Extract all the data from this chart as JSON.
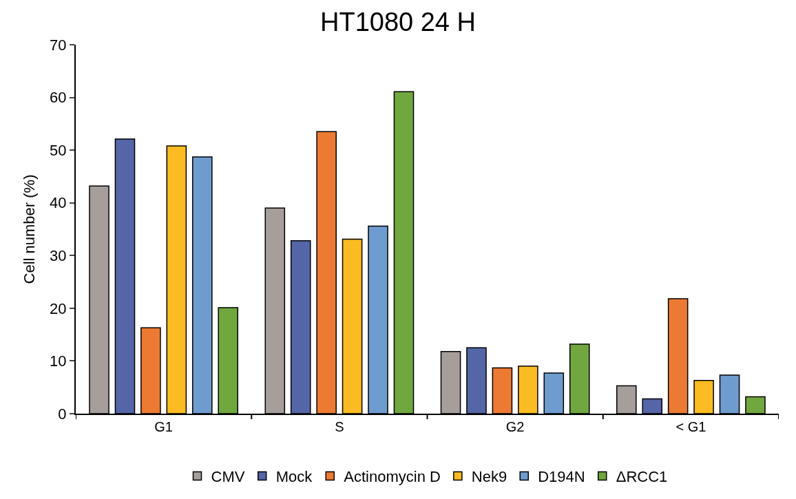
{
  "chart_data": {
    "type": "bar",
    "title": "HT1080 24 H",
    "ylabel": "Cell number (%)",
    "categories": [
      "G1",
      "S",
      "G2",
      "< G1"
    ],
    "series": [
      {
        "name": "CMV",
        "color": "#a59e9a",
        "values": [
          43.2,
          39.0,
          11.8,
          5.3
        ]
      },
      {
        "name": "Mock",
        "color": "#5466a8",
        "values": [
          52.1,
          32.8,
          12.5,
          2.8
        ]
      },
      {
        "name": "Actinomycin D",
        "color": "#ec7a32",
        "values": [
          16.3,
          53.5,
          8.7,
          21.8
        ]
      },
      {
        "name": "Nek9",
        "color": "#fbbb22",
        "values": [
          50.8,
          33.1,
          9.0,
          6.3
        ]
      },
      {
        "name": "D194N",
        "color": "#6f9ccf",
        "values": [
          48.7,
          35.6,
          7.7,
          7.3
        ]
      },
      {
        "name": "ΔRCC1",
        "color": "#70a73f",
        "values": [
          20.1,
          61.1,
          13.2,
          3.2
        ]
      }
    ],
    "ylim": [
      0,
      70
    ],
    "yticks": [
      0,
      10,
      20,
      30,
      40,
      50,
      60,
      70
    ],
    "legend": "bottom"
  }
}
